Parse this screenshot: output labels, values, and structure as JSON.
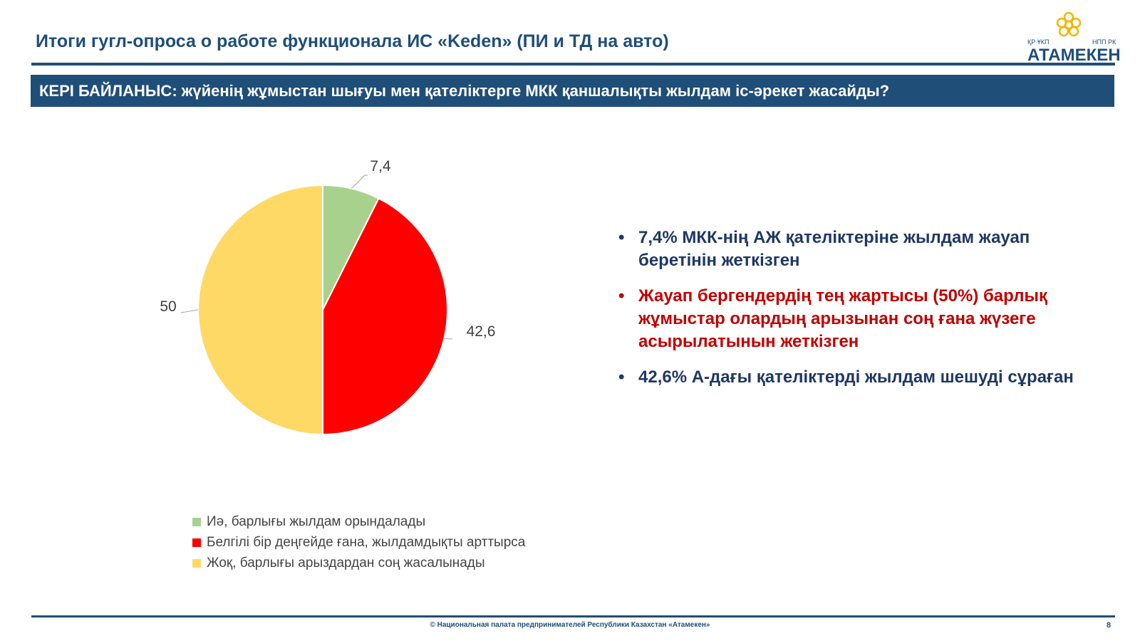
{
  "header": {
    "title": "Итоги гугл-опроса о работе функционала ИС «Keden» (ПИ и ТД на авто)",
    "logo": {
      "left_caption": "ҚР ҰКП",
      "right_caption": "НПП РК",
      "name": "АТАМЕКЕН",
      "icon": "atameken-flower-icon"
    }
  },
  "banner": {
    "text": "КЕРІ БАЙЛАНЫС: жүйенің жұмыстан шығуы мен қателіктерге МКК қаншалықты жылдам іс-әрекет жасайды?"
  },
  "chart_data": {
    "type": "pie",
    "categories": [
      "Иә, барлығы жылдам орындалады",
      "Белгілі бір деңгейде ғана, жылдамдықты арттырса",
      "Жоқ, барлығы арыздардан соң жасалынады"
    ],
    "values": [
      7.4,
      42.6,
      50
    ],
    "data_labels": [
      "7,4",
      "42,6",
      "50"
    ],
    "colors": [
      "#a9d18e",
      "#ff0000",
      "#ffd966"
    ],
    "legend_position": "bottom-left"
  },
  "bullets": [
    {
      "text": "7,4% МКК-нің АЖ қателіктеріне жылдам жауап беретінін жеткізген",
      "color": "#1f3864"
    },
    {
      "text": "Жауап бергендердің тең жартысы (50%) барлық жұмыстар олардың арызынан соң ғана жүзеге асырылатынын жеткізген",
      "color": "#c00000"
    },
    {
      "text": "42,6% А-дағы қателіктерді жылдам шешуді сұраған",
      "color": "#1f3864"
    }
  ],
  "footer": {
    "text": "© Национальная палата предпринимателей Республики Казахстан «Атамекен»",
    "page": "8"
  }
}
